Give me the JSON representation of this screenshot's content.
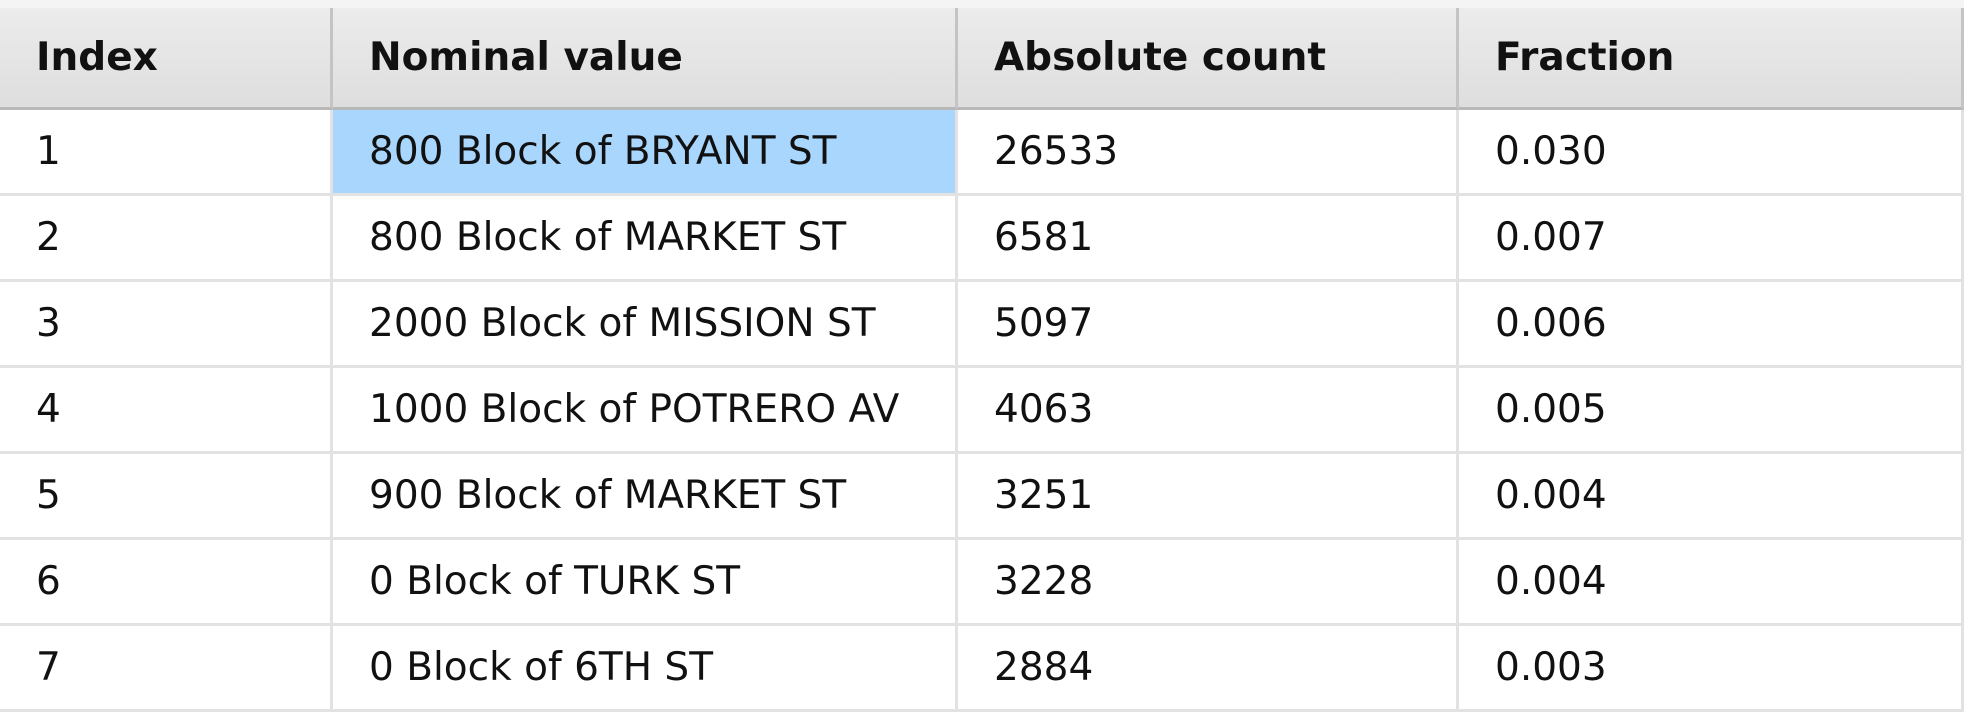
{
  "header": {
    "columns": [
      "Index",
      "Nominal value",
      "Absolute count",
      "Fraction"
    ]
  },
  "table": {
    "rows": [
      [
        "1",
        "800 Block of BRYANT ST",
        "26533",
        "0.030"
      ],
      [
        "2",
        "800 Block of MARKET ST",
        "6581",
        "0.007"
      ],
      [
        "3",
        "2000 Block of MISSION ST",
        "5097",
        "0.006"
      ],
      [
        "4",
        "1000 Block of POTRERO AV",
        "4063",
        "0.005"
      ],
      [
        "5",
        "900 Block of MARKET ST",
        "3251",
        "0.004"
      ],
      [
        "6",
        "0 Block of TURK ST",
        "3228",
        "0.004"
      ],
      [
        "7",
        "0 Block of 6TH ST",
        "2884",
        "0.003"
      ]
    ]
  }
}
